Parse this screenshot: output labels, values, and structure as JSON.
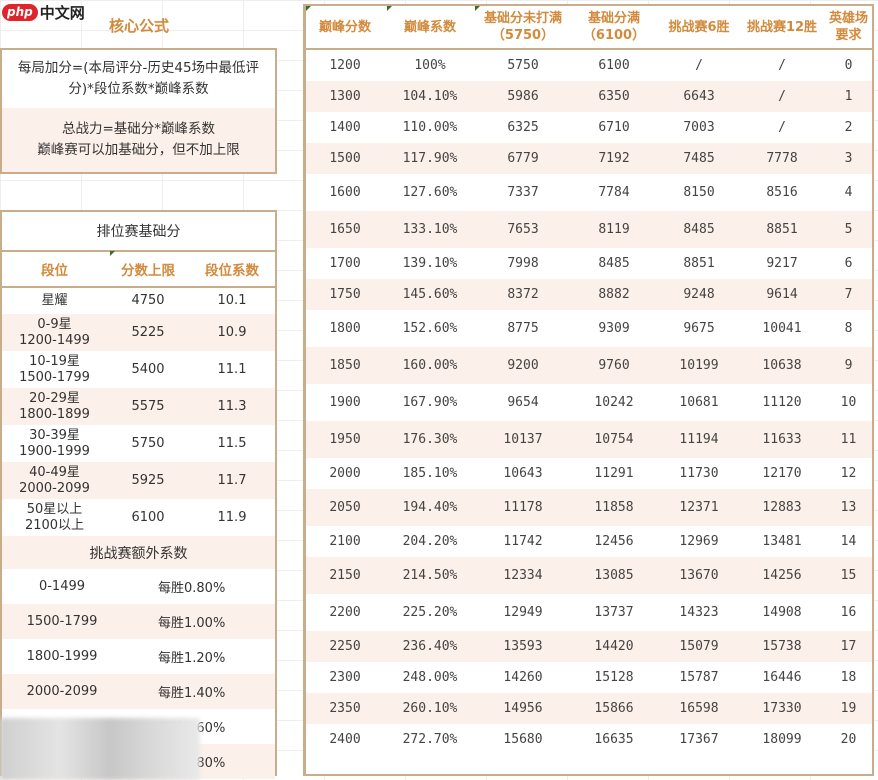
{
  "watermark": {
    "badge": "php",
    "text": "中文网"
  },
  "core_formula": {
    "title": "核心公式",
    "formula_1": "每局加分=(本局评分-历史45场中最低评分)*段位系数*巅峰系数",
    "formula_2_line1": "总战力=基础分*巅峰系数",
    "formula_2_line2": "巅峰赛可以加基础分，但不加上限"
  },
  "ranked_base": {
    "title": "排位赛基础分",
    "headers": [
      "段位",
      "分数上限",
      "段位系数"
    ],
    "rows": [
      {
        "tier": "星耀",
        "tier_sub": "",
        "cap": "4750",
        "coef": "10.1"
      },
      {
        "tier": "0-9星",
        "tier_sub": "1200-1499",
        "cap": "5225",
        "coef": "10.9"
      },
      {
        "tier": "10-19星",
        "tier_sub": "1500-1799",
        "cap": "5400",
        "coef": "11.1"
      },
      {
        "tier": "20-29星",
        "tier_sub": "1800-1899",
        "cap": "5575",
        "coef": "11.3"
      },
      {
        "tier": "30-39星",
        "tier_sub": "1900-1999",
        "cap": "5750",
        "coef": "11.5"
      },
      {
        "tier": "40-49星",
        "tier_sub": "2000-2099",
        "cap": "5925",
        "coef": "11.7"
      },
      {
        "tier": "50星以上",
        "tier_sub": "2100以上",
        "cap": "6100",
        "coef": "11.9"
      }
    ]
  },
  "challenge_extra": {
    "title": "挑战赛额外系数",
    "rows": [
      {
        "range": "0-1499",
        "bonus": "每胜0.80%"
      },
      {
        "range": "1500-1799",
        "bonus": "每胜1.00%"
      },
      {
        "range": "1800-1999",
        "bonus": "每胜1.20%"
      },
      {
        "range": "2000-2099",
        "bonus": "每胜1.40%"
      },
      {
        "range": "",
        "bonus": "每胜1.60%"
      },
      {
        "range": "",
        "bonus": "每胜1.80%"
      }
    ]
  },
  "peak_table": {
    "headers": [
      "巅峰分数",
      "巅峰系数",
      "基础分未打满（5750）",
      "基础分满（6100）",
      "挑战赛6胜",
      "挑战赛12胜",
      "英雄场要求"
    ],
    "rows": [
      [
        "1200",
        "100%",
        "5750",
        "6100",
        "/",
        "/",
        "0"
      ],
      [
        "1300",
        "104.10%",
        "5986",
        "6350",
        "6643",
        "/",
        "1"
      ],
      [
        "1400",
        "110.00%",
        "6325",
        "6710",
        "7003",
        "/",
        "2"
      ],
      [
        "1500",
        "117.90%",
        "6779",
        "7192",
        "7485",
        "7778",
        "3"
      ],
      [
        "1600",
        "127.60%",
        "7337",
        "7784",
        "8150",
        "8516",
        "4"
      ],
      [
        "1650",
        "133.10%",
        "7653",
        "8119",
        "8485",
        "8851",
        "5"
      ],
      [
        "1700",
        "139.10%",
        "7998",
        "8485",
        "8851",
        "9217",
        "6"
      ],
      [
        "1750",
        "145.60%",
        "8372",
        "8882",
        "9248",
        "9614",
        "7"
      ],
      [
        "1800",
        "152.60%",
        "8775",
        "9309",
        "9675",
        "10041",
        "8"
      ],
      [
        "1850",
        "160.00%",
        "9200",
        "9760",
        "10199",
        "10638",
        "9"
      ],
      [
        "1900",
        "167.90%",
        "9654",
        "10242",
        "10681",
        "11120",
        "10"
      ],
      [
        "1950",
        "176.30%",
        "10137",
        "10754",
        "11194",
        "11633",
        "11"
      ],
      [
        "2000",
        "185.10%",
        "10643",
        "11291",
        "11730",
        "12170",
        "12"
      ],
      [
        "2050",
        "194.40%",
        "11178",
        "11858",
        "12371",
        "12883",
        "13"
      ],
      [
        "2100",
        "204.20%",
        "11742",
        "12456",
        "12969",
        "13481",
        "14"
      ],
      [
        "2150",
        "214.50%",
        "12334",
        "13085",
        "13670",
        "14256",
        "15"
      ],
      [
        "2200",
        "225.20%",
        "12949",
        "13737",
        "14323",
        "14908",
        "16"
      ],
      [
        "2250",
        "236.40%",
        "13593",
        "14420",
        "15079",
        "15738",
        "17"
      ],
      [
        "2300",
        "248.00%",
        "14260",
        "15128",
        "15787",
        "16446",
        "18"
      ],
      [
        "2350",
        "260.10%",
        "14956",
        "15866",
        "16598",
        "17330",
        "19"
      ],
      [
        "2400",
        "272.70%",
        "15680",
        "16635",
        "17367",
        "18099",
        "20"
      ]
    ]
  },
  "colors": {
    "header_text": "#d28a3c",
    "border": "#c9ac8a",
    "stripe": "#fcf0ea",
    "watermark_red": "#e0242b"
  }
}
